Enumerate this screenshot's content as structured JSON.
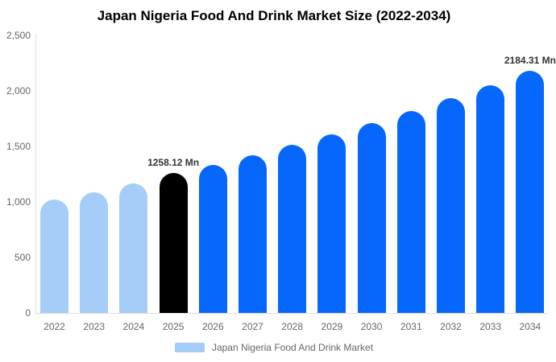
{
  "chart_data": {
    "type": "bar",
    "title": "Japan Nigeria Food And Drink Market Size (2022-2034)",
    "legend": "Japan Nigeria Food And Drink Market",
    "xlabel": "",
    "ylabel": "",
    "ylim": [
      0,
      2500
    ],
    "grid": false,
    "legend_position": "bottom-center",
    "categories": [
      "2022",
      "2023",
      "2024",
      "2025",
      "2026",
      "2027",
      "2028",
      "2029",
      "2030",
      "2031",
      "2032",
      "2033",
      "2034"
    ],
    "values": [
      1020,
      1090,
      1165,
      1258.12,
      1337,
      1422,
      1512,
      1608,
      1709,
      1817,
      1932,
      2054,
      2184.31
    ],
    "unit": "Mn",
    "bar_colors": [
      "#A5CDF8",
      "#A5CDF8",
      "#A5CDF8",
      "#000000",
      "#0667FD",
      "#0667FD",
      "#0667FD",
      "#0667FD",
      "#0667FD",
      "#0667FD",
      "#0667FD",
      "#0667FD",
      "#0667FD"
    ],
    "palette": {
      "historical": "#A5CDF8",
      "highlight": "#000000",
      "forecast": "#0667FD",
      "axis_line": "#dddddd",
      "tick_text": "#666666",
      "data_label_text": "#333333"
    },
    "yticks": [
      {
        "value": 0,
        "label": "0"
      },
      {
        "value": 500,
        "label": "500"
      },
      {
        "value": 1000,
        "label": "1,000"
      },
      {
        "value": 1500,
        "label": "1,500"
      },
      {
        "value": 2000,
        "label": "2,000"
      },
      {
        "value": 2500,
        "label": "2,500"
      }
    ],
    "data_labels": [
      {
        "index": 3,
        "text": "1258.12 Mn"
      },
      {
        "index": 12,
        "text": "2184.31 Mn"
      }
    ]
  }
}
